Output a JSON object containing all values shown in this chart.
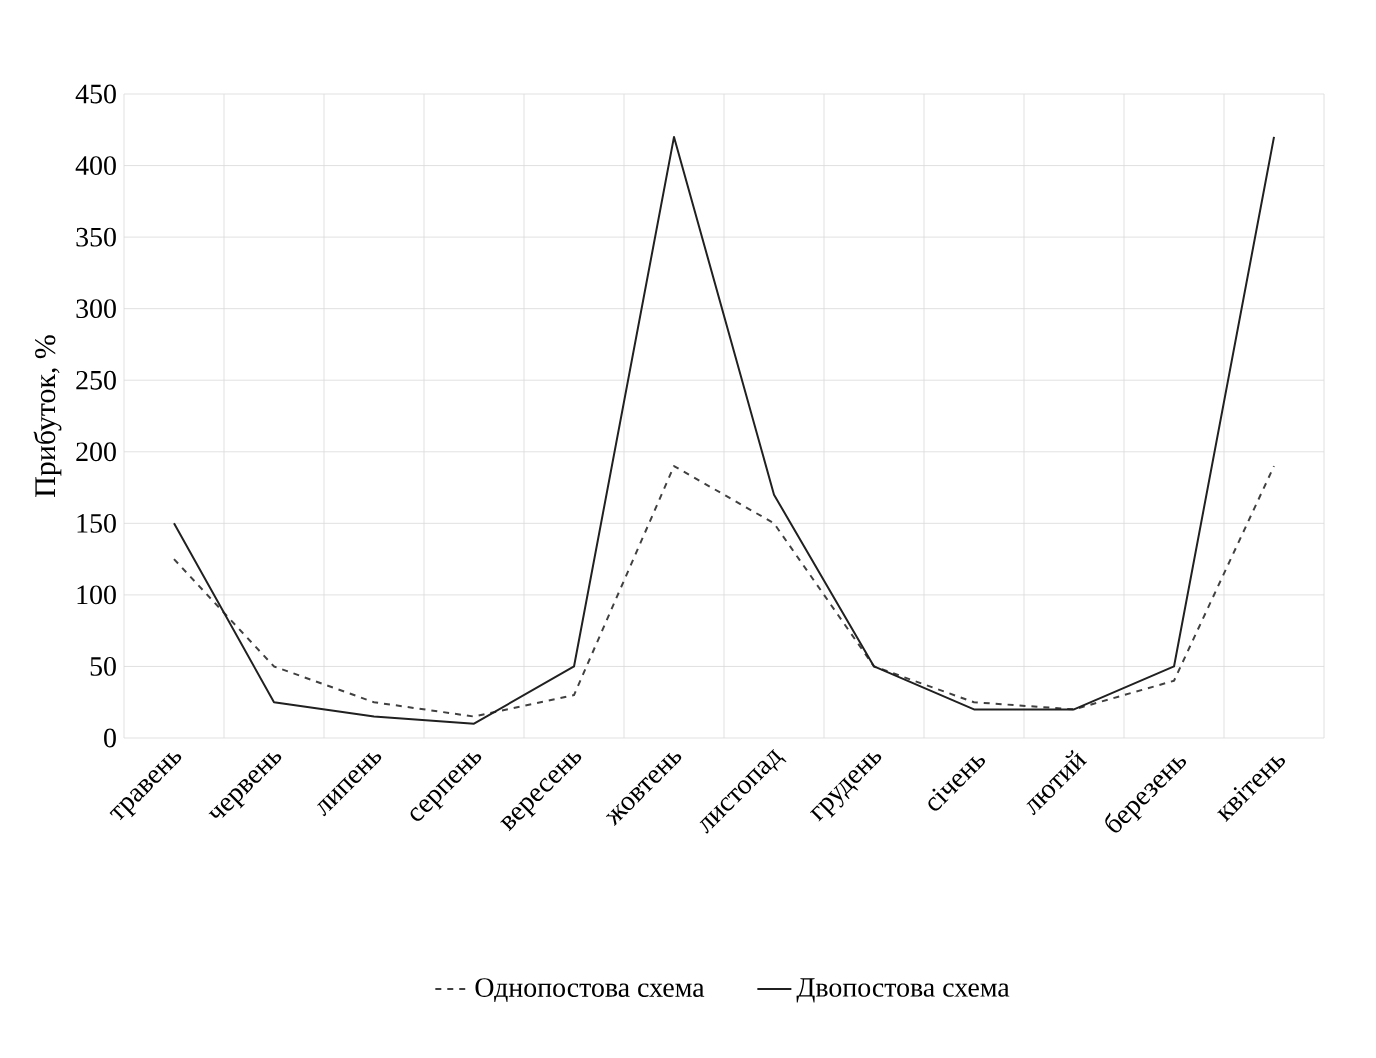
{
  "chart_data": {
    "type": "line",
    "ylabel": "Прибуток, %",
    "categories": [
      "травень",
      "червень",
      "липень",
      "серпень",
      "вересень",
      "жовтень",
      "листопад",
      "грудень",
      "січень",
      "лютий",
      "березень",
      "квітень"
    ],
    "series": [
      {
        "name": "Однопостова схема",
        "color": "#404040",
        "line_style": "dashed",
        "values": [
          125,
          50,
          25,
          15,
          30,
          190,
          150,
          50,
          25,
          20,
          40,
          190
        ]
      },
      {
        "name": "Двопостова схема",
        "color": "#202020",
        "line_style": "solid",
        "values": [
          150,
          25,
          15,
          10,
          50,
          420,
          170,
          50,
          20,
          20,
          50,
          420
        ]
      }
    ],
    "ylim": [
      0,
      450
    ],
    "yticks": [
      0,
      50,
      100,
      150,
      200,
      250,
      300,
      350,
      400,
      450
    ],
    "grid": true,
    "legend": "bottom",
    "marker": "none"
  }
}
